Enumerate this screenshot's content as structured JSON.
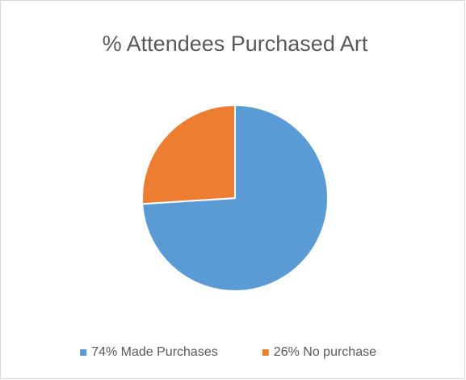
{
  "chart_data": {
    "type": "pie",
    "title": "% Attendees Purchased Art",
    "categories": [
      "74% Made Purchases",
      "26% No purchase"
    ],
    "values": [
      74,
      26
    ],
    "colors": [
      "#5b9bd5",
      "#ed7d31"
    ],
    "legend": "bottom"
  }
}
